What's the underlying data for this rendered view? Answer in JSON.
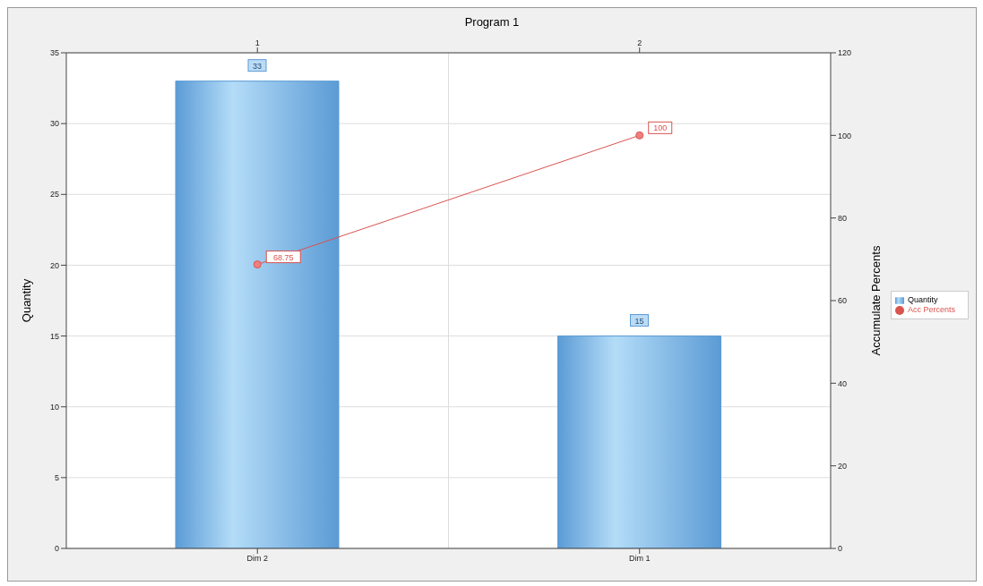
{
  "chart_data": {
    "type": "bar",
    "title": "Program 1",
    "categories": [
      "Dim 2",
      "Dim 1"
    ],
    "series": [
      {
        "name": "Quantity",
        "color": "#5b9bd5",
        "values": [
          33,
          15
        ]
      },
      {
        "name": "Acc Percents",
        "type": "line",
        "axis": "y2",
        "color": "#d9534f",
        "values": [
          68.75,
          100
        ],
        "marker": "circle"
      }
    ],
    "ylim": [
      0,
      35
    ],
    "yticks": [
      0,
      5,
      10,
      15,
      20,
      25,
      30,
      35
    ],
    "ylabel": "Quantity",
    "y2lim": [
      0,
      120
    ],
    "y2ticks": [
      0,
      20,
      40,
      60,
      80,
      100,
      120
    ],
    "y2label": "Accumulate Percents",
    "x2lim": [
      0.5,
      2.5
    ],
    "x2ticks": [
      1,
      2
    ],
    "grid": true,
    "legend": "right",
    "data_labels": true
  }
}
